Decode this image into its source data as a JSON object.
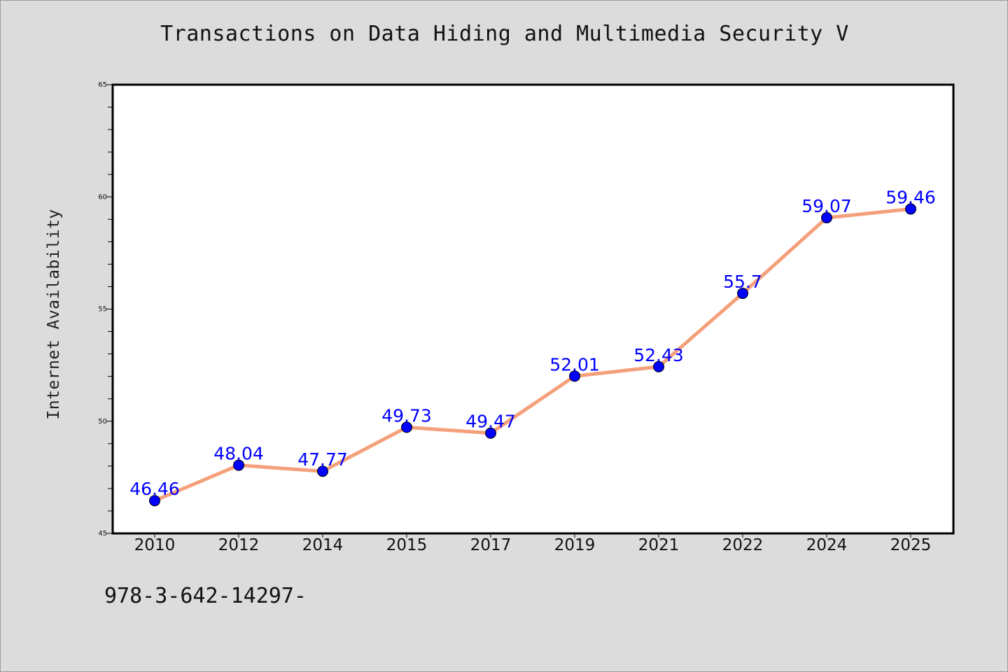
{
  "chart_data": {
    "type": "line",
    "title": "Transactions on Data Hiding and Multimedia Security V",
    "xlabel": "",
    "ylabel": "Internet Availability",
    "categories": [
      "2010",
      "2012",
      "2014",
      "2015",
      "2017",
      "2019",
      "2021",
      "2022",
      "2024",
      "2025"
    ],
    "series": [
      {
        "values": [
          46.46,
          48.04,
          47.77,
          49.73,
          49.47,
          52.01,
          52.43,
          55.7,
          59.07,
          59.46
        ],
        "labels": [
          "46.46",
          "48.04",
          "47.77",
          "49.73",
          "49.47",
          "52.01",
          "52.43",
          "55.7",
          "59.07",
          "59.46"
        ],
        "line_color": "#f4a07a",
        "marker_color": "#0000ff"
      }
    ],
    "ylim": [
      45,
      65
    ],
    "y_ticks": [
      "45",
      "50",
      "55",
      "60",
      "65"
    ],
    "y_minor_step": 1,
    "grid": false,
    "legend": "none"
  },
  "footer": {
    "text": "978-3-642-14297-"
  },
  "colors": {
    "background": "#dcdcdc",
    "plot_area": "#ffffff",
    "line": "#f4a07a",
    "marker": "#0000ff",
    "data_label": "#0000ff"
  }
}
